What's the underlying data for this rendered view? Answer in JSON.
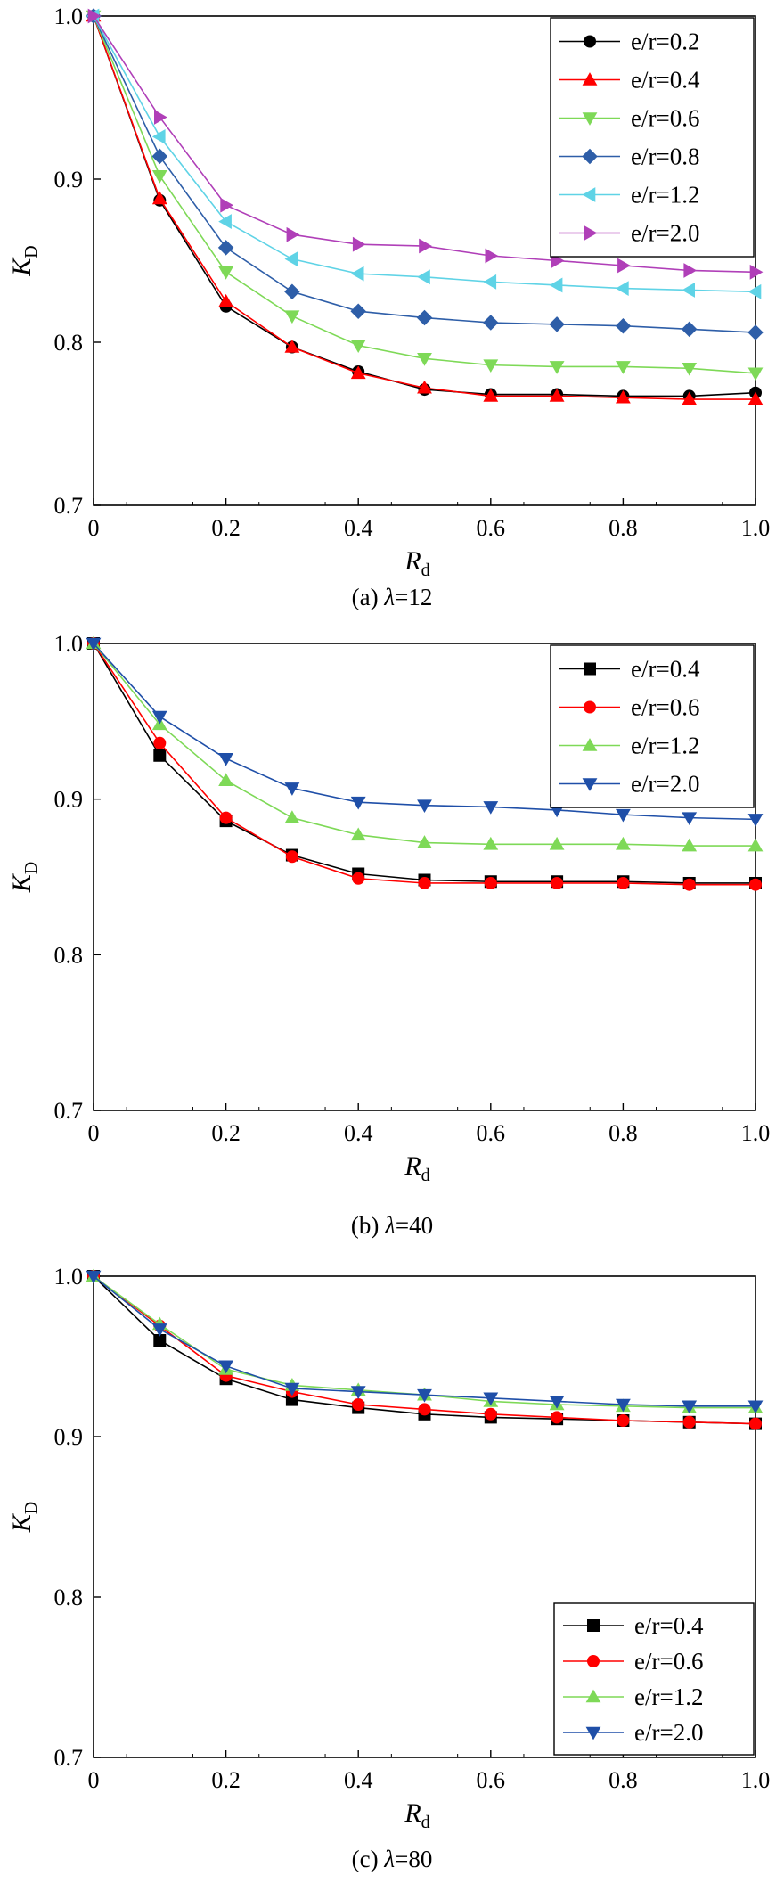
{
  "chart_data": [
    {
      "type": "line",
      "caption_prefix": "(a) ",
      "caption_lambda": "λ",
      "caption_value": "=12",
      "ylabel": "K",
      "ylabel_sub": "D",
      "xlabel": "R",
      "xlabel_sub": "d",
      "xlim": [
        0,
        1.0
      ],
      "ylim": [
        0.7,
        1.0
      ],
      "xticks": [
        "0",
        "0.2",
        "0.4",
        "0.6",
        "0.8",
        "1.0"
      ],
      "yticks": [
        "0.7",
        "0.8",
        "0.9",
        "1.0"
      ],
      "legend": "top-right",
      "x": [
        0,
        0.1,
        0.2,
        0.3,
        0.4,
        0.5,
        0.6,
        0.7,
        0.8,
        0.9,
        1.0
      ],
      "series": [
        {
          "name": "e/r=0.2",
          "color": "#000000",
          "marker": "circle",
          "values": [
            1.0,
            0.887,
            0.822,
            0.797,
            0.782,
            0.771,
            0.768,
            0.768,
            0.767,
            0.767,
            0.769
          ]
        },
        {
          "name": "e/r=0.4",
          "color": "#ff0000",
          "marker": "triangle-up",
          "values": [
            1.0,
            0.888,
            0.825,
            0.797,
            0.781,
            0.772,
            0.767,
            0.767,
            0.766,
            0.765,
            0.765
          ]
        },
        {
          "name": "e/r=0.6",
          "color": "#7ed957",
          "marker": "triangle-down",
          "values": [
            1.0,
            0.902,
            0.843,
            0.816,
            0.798,
            0.79,
            0.786,
            0.785,
            0.785,
            0.784,
            0.781
          ]
        },
        {
          "name": "e/r=0.8",
          "color": "#2e5ea8",
          "marker": "diamond",
          "values": [
            1.0,
            0.914,
            0.858,
            0.831,
            0.819,
            0.815,
            0.812,
            0.811,
            0.81,
            0.808,
            0.806
          ]
        },
        {
          "name": "e/r=1.2",
          "color": "#5fd3e6",
          "marker": "triangle-left",
          "values": [
            1.0,
            0.926,
            0.874,
            0.851,
            0.842,
            0.84,
            0.837,
            0.835,
            0.833,
            0.832,
            0.831
          ]
        },
        {
          "name": "e/r=2.0",
          "color": "#b03fb8",
          "marker": "triangle-right",
          "values": [
            1.0,
            0.938,
            0.884,
            0.866,
            0.86,
            0.859,
            0.853,
            0.85,
            0.847,
            0.844,
            0.843
          ]
        }
      ]
    },
    {
      "type": "line",
      "caption_prefix": "(b) ",
      "caption_lambda": "λ",
      "caption_value": "=40",
      "ylabel": "K",
      "ylabel_sub": "D",
      "xlabel": "R",
      "xlabel_sub": "d",
      "xlim": [
        0,
        1.0
      ],
      "ylim": [
        0.7,
        1.0
      ],
      "xticks": [
        "0",
        "0.2",
        "0.4",
        "0.6",
        "0.8",
        "1.0"
      ],
      "yticks": [
        "0.7",
        "0.8",
        "0.9",
        "1.0"
      ],
      "legend": "top-right",
      "x": [
        0,
        0.1,
        0.2,
        0.3,
        0.4,
        0.5,
        0.6,
        0.7,
        0.8,
        0.9,
        1.0
      ],
      "series": [
        {
          "name": "e/r=0.4",
          "color": "#000000",
          "marker": "square",
          "values": [
            1.0,
            0.928,
            0.886,
            0.864,
            0.852,
            0.848,
            0.847,
            0.847,
            0.847,
            0.846,
            0.846
          ]
        },
        {
          "name": "e/r=0.6",
          "color": "#ff0000",
          "marker": "circle",
          "values": [
            1.0,
            0.936,
            0.888,
            0.863,
            0.849,
            0.846,
            0.846,
            0.846,
            0.846,
            0.845,
            0.845
          ]
        },
        {
          "name": "e/r=1.2",
          "color": "#7ed957",
          "marker": "triangle-up",
          "values": [
            1.0,
            0.948,
            0.912,
            0.888,
            0.877,
            0.872,
            0.871,
            0.871,
            0.871,
            0.87,
            0.87
          ]
        },
        {
          "name": "e/r=2.0",
          "color": "#1f4fa8",
          "marker": "triangle-down",
          "values": [
            1.0,
            0.953,
            0.926,
            0.907,
            0.898,
            0.896,
            0.895,
            0.893,
            0.89,
            0.888,
            0.887
          ]
        }
      ]
    },
    {
      "type": "line",
      "caption_prefix": "(c) ",
      "caption_lambda": "λ",
      "caption_value": "=80",
      "ylabel": "K",
      "ylabel_sub": "D",
      "xlabel": "R",
      "xlabel_sub": "d",
      "xlim": [
        0,
        1.0
      ],
      "ylim": [
        0.7,
        1.0
      ],
      "xticks": [
        "0",
        "0.2",
        "0.4",
        "0.6",
        "0.8",
        "1.0"
      ],
      "yticks": [
        "0.7",
        "0.8",
        "0.9",
        "1.0"
      ],
      "legend": "bottom-right",
      "x": [
        0,
        0.1,
        0.2,
        0.3,
        0.4,
        0.5,
        0.6,
        0.7,
        0.8,
        0.9,
        1.0
      ],
      "series": [
        {
          "name": "e/r=0.4",
          "color": "#000000",
          "marker": "square",
          "values": [
            1.0,
            0.96,
            0.936,
            0.923,
            0.918,
            0.914,
            0.912,
            0.911,
            0.91,
            0.909,
            0.908
          ]
        },
        {
          "name": "e/r=0.6",
          "color": "#ff0000",
          "marker": "circle",
          "values": [
            1.0,
            0.969,
            0.938,
            0.928,
            0.92,
            0.917,
            0.914,
            0.912,
            0.91,
            0.909,
            0.908
          ]
        },
        {
          "name": "e/r=1.2",
          "color": "#7ed957",
          "marker": "triangle-up",
          "values": [
            1.0,
            0.97,
            0.942,
            0.932,
            0.929,
            0.926,
            0.922,
            0.92,
            0.919,
            0.918,
            0.918
          ]
        },
        {
          "name": "e/r=2.0",
          "color": "#1f4fa8",
          "marker": "triangle-down",
          "values": [
            1.0,
            0.967,
            0.944,
            0.93,
            0.928,
            0.926,
            0.924,
            0.922,
            0.92,
            0.919,
            0.919
          ]
        }
      ]
    }
  ]
}
